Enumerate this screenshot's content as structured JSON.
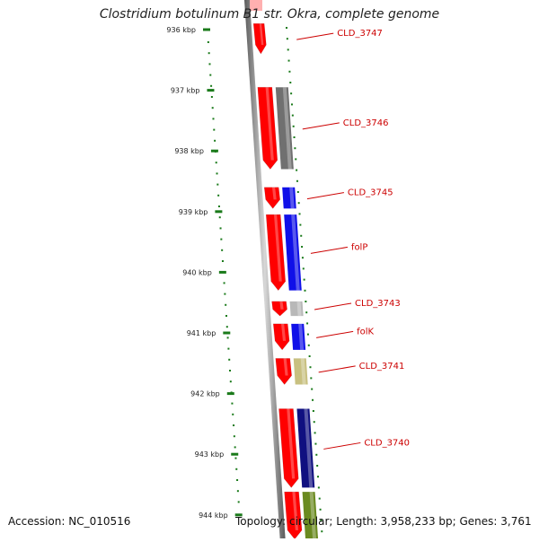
{
  "title": "Clostridium botulinum B1 str. Okra, complete genome",
  "accession": "Accession: NC_010516",
  "topology": "Topology: circular; Length: 3,958,233 bp; Genes: 3,761",
  "ruler": {
    "ticks": [
      {
        "label": "936 kbp",
        "kbp": 936
      },
      {
        "label": "937 kbp",
        "kbp": 937
      },
      {
        "label": "938 kbp",
        "kbp": 938
      },
      {
        "label": "939 kbp",
        "kbp": 939
      },
      {
        "label": "940 kbp",
        "kbp": 940
      },
      {
        "label": "941 kbp",
        "kbp": 941
      },
      {
        "label": "942 kbp",
        "kbp": 942
      },
      {
        "label": "943 kbp",
        "kbp": 943
      },
      {
        "label": "944 kbp",
        "kbp": 944
      }
    ]
  },
  "genes": [
    {
      "label": "CLD_3747",
      "start_kbp": 935.9,
      "end_kbp": 936.4,
      "cog_color": "#ffb0b0"
    },
    {
      "label": "CLD_3746",
      "start_kbp": 936.95,
      "end_kbp": 938.3,
      "cog_color": "#707070"
    },
    {
      "label": "CLD_3745",
      "start_kbp": 938.6,
      "end_kbp": 938.95,
      "cog_color": "#1010e8"
    },
    {
      "label": "folP",
      "start_kbp": 939.05,
      "end_kbp": 940.3,
      "cog_color": "#1010e8"
    },
    {
      "label": "CLD_3743",
      "start_kbp": 940.48,
      "end_kbp": 940.72,
      "cog_color": "#b8b8b8"
    },
    {
      "label": "folK",
      "start_kbp": 940.85,
      "end_kbp": 941.28,
      "cog_color": "#1010e8"
    },
    {
      "label": "CLD_3741",
      "start_kbp": 941.42,
      "end_kbp": 941.85,
      "cog_color": "#c8c080"
    },
    {
      "label": "CLD_3740",
      "start_kbp": 942.25,
      "end_kbp": 943.55,
      "cog_color": "#101080"
    },
    {
      "label": "",
      "start_kbp": 943.62,
      "end_kbp": 944.4,
      "cog_color": "#6a8a20"
    }
  ],
  "colors": {
    "gene_fill": "#ff0000",
    "label": "#cc0000",
    "ruler": "#1a7a1a",
    "backbone": "#909090"
  }
}
